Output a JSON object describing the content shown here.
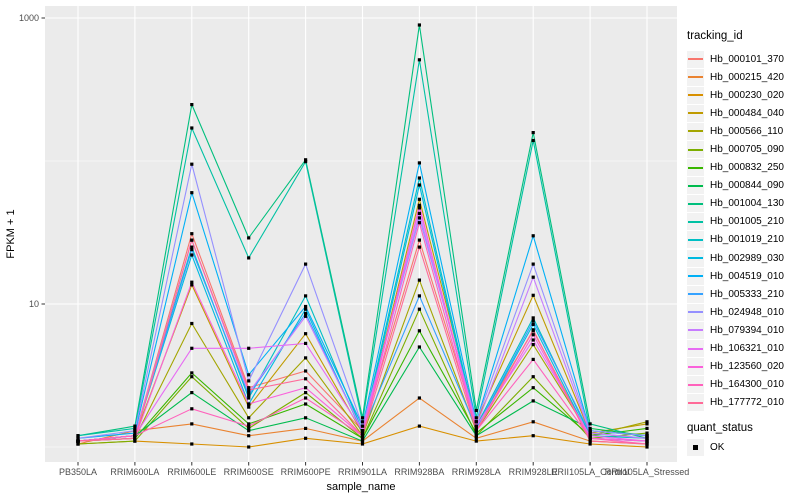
{
  "chart_data": {
    "type": "line",
    "title": "",
    "xlabel": "sample_name",
    "ylabel": "FPKM + 1",
    "y_scale": "log10",
    "y_tick_labels": [
      "1000",
      "10"
    ],
    "y_tick_values": [
      1000,
      10
    ],
    "y_minor_values": [
      100,
      1
    ],
    "panel_background": "#EBEBEB",
    "gridline_color": "#FFFFFF",
    "point_color": "#000000",
    "axis_text_color": "#4D4D4D",
    "tick_color": "#333333",
    "categories": [
      "PB350LA",
      "RRIM600LA",
      "RRIM600LE",
      "RRIM600SE",
      "RRIM600PE",
      "RRIM901LA",
      "RRIM928BA",
      "RRIM928LA",
      "RRIM928LE",
      "RRII105LA_Control",
      "RRII105LA_Stressed"
    ],
    "series": [
      {
        "name": "Hb_000101_370",
        "color": "#F8766D",
        "values": [
          1.1,
          1.2,
          31,
          2.6,
          3.4,
          1.3,
          28,
          1.4,
          6.5,
          1.15,
          1.1
        ]
      },
      {
        "name": "Hb_000215_420",
        "color": "#EA8331",
        "values": [
          1.05,
          1.3,
          1.45,
          1.2,
          1.35,
          1.1,
          2.2,
          1.15,
          1.5,
          1.1,
          1.05
        ]
      },
      {
        "name": "Hb_000230_020",
        "color": "#D89000",
        "values": [
          1.05,
          1.1,
          1.05,
          1.0,
          1.15,
          1.05,
          1.4,
          1.1,
          1.2,
          1.05,
          1.0
        ]
      },
      {
        "name": "Hb_000484_040",
        "color": "#C09B00",
        "values": [
          1.1,
          1.2,
          13.6,
          1.9,
          6.2,
          1.25,
          54,
          1.5,
          11.5,
          1.25,
          1.45
        ]
      },
      {
        "name": "Hb_000566_110",
        "color": "#A3A500",
        "values": [
          1.1,
          1.15,
          7.3,
          1.6,
          4.2,
          1.2,
          14.7,
          1.3,
          5.2,
          1.2,
          1.5
        ]
      },
      {
        "name": "Hb_000705_090",
        "color": "#7CAE00",
        "values": [
          1.05,
          1.1,
          3.1,
          1.35,
          2.4,
          1.15,
          9.2,
          1.2,
          3.1,
          1.15,
          1.25
        ]
      },
      {
        "name": "Hb_000832_250",
        "color": "#39B600",
        "values": [
          1.1,
          1.15,
          3.3,
          1.45,
          2.0,
          1.15,
          6.5,
          1.25,
          2.6,
          1.2,
          1.35
        ]
      },
      {
        "name": "Hb_000844_090",
        "color": "#00BB4E",
        "values": [
          1.1,
          1.2,
          2.4,
          1.3,
          1.6,
          1.1,
          5.0,
          1.2,
          2.1,
          1.35,
          1.2
        ]
      },
      {
        "name": "Hb_001004_130",
        "color": "#00BF7D",
        "values": [
          1.2,
          1.4,
          248,
          29,
          102,
          1.6,
          894,
          1.8,
          158,
          1.45,
          1.15
        ]
      },
      {
        "name": "Hb_001005_210",
        "color": "#00C1A3",
        "values": [
          1.2,
          1.35,
          170,
          21,
          99,
          1.5,
          510,
          1.6,
          139,
          1.3,
          1.2
        ]
      },
      {
        "name": "Hb_001019_210",
        "color": "#00BFC4",
        "values": [
          1.1,
          1.2,
          25,
          2.2,
          11.4,
          1.3,
          76,
          1.4,
          8.0,
          1.2,
          1.15
        ]
      },
      {
        "name": "Hb_002989_030",
        "color": "#00BAE0",
        "values": [
          1.1,
          1.2,
          22,
          2.0,
          9.2,
          1.25,
          68,
          1.35,
          7.2,
          1.15,
          1.1
        ]
      },
      {
        "name": "Hb_004519_010",
        "color": "#00B0F6",
        "values": [
          1.15,
          1.25,
          60,
          3.2,
          9.6,
          1.4,
          97,
          1.5,
          30,
          1.3,
          1.2
        ]
      },
      {
        "name": "Hb_005333_210",
        "color": "#35A2FF",
        "values": [
          1.1,
          1.2,
          24,
          2.3,
          8.6,
          1.3,
          11.4,
          1.35,
          7.6,
          1.25,
          1.15
        ]
      },
      {
        "name": "Hb_024948_010",
        "color": "#9590FF",
        "values": [
          1.15,
          1.3,
          95,
          2.9,
          19,
          1.4,
          40,
          1.5,
          19,
          1.3,
          1.2
        ]
      },
      {
        "name": "Hb_079394_010",
        "color": "#C77CFF",
        "values": [
          1.1,
          1.2,
          28,
          2.4,
          8.2,
          1.3,
          43,
          1.4,
          15.4,
          1.25,
          1.15
        ]
      },
      {
        "name": "Hb_106321_010",
        "color": "#E76BF3",
        "values": [
          1.1,
          1.2,
          4.9,
          4.9,
          5.3,
          1.3,
          47,
          1.4,
          5.6,
          1.2,
          1.1
        ]
      },
      {
        "name": "Hb_123560_020",
        "color": "#FA62DB",
        "values": [
          1.1,
          1.15,
          14.2,
          2.0,
          2.6,
          1.2,
          49,
          1.3,
          6.1,
          1.15,
          1.1
        ]
      },
      {
        "name": "Hb_164300_010",
        "color": "#FF62BC",
        "values": [
          1.1,
          1.2,
          1.85,
          1.4,
          2.2,
          1.2,
          37,
          1.3,
          4.1,
          1.15,
          1.05
        ]
      },
      {
        "name": "Hb_177772_010",
        "color": "#FF6A98",
        "values": [
          1.1,
          1.15,
          28,
          2.5,
          3.0,
          1.2,
          25,
          1.3,
          6.6,
          1.1,
          1.05
        ]
      }
    ],
    "legend": {
      "tracking_title": "tracking_id",
      "quant_title": "quant_status",
      "quant_items": [
        "OK"
      ],
      "key_background": "#F2F2F2"
    }
  }
}
